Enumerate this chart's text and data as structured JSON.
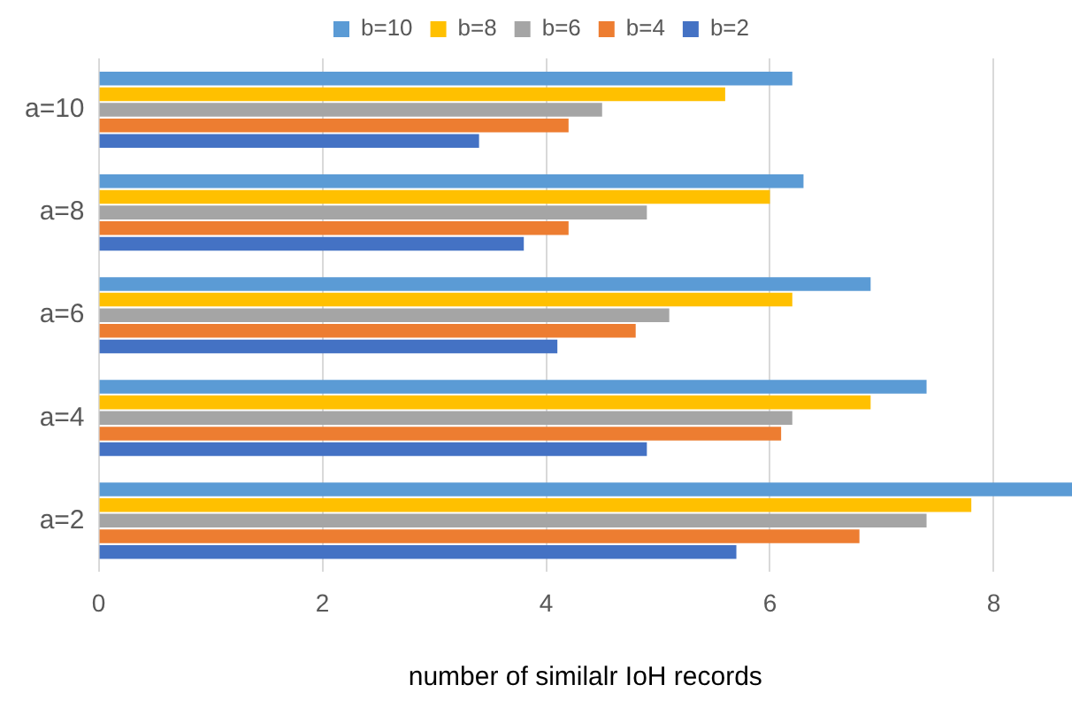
{
  "chart_data": {
    "type": "bar",
    "orientation": "horizontal",
    "xlabel": "number of similalr IoH records",
    "categories": [
      "a=10",
      "a=8",
      "a=6",
      "a=4",
      "a=2"
    ],
    "series": [
      {
        "name": "b=10",
        "color": "#5b9bd5",
        "values": [
          6.2,
          6.3,
          6.9,
          7.4,
          8.7
        ]
      },
      {
        "name": "b=8",
        "color": "#ffc000",
        "values": [
          5.6,
          6.0,
          6.2,
          6.9,
          7.8
        ]
      },
      {
        "name": "b=6",
        "color": "#a5a5a5",
        "values": [
          4.5,
          4.9,
          5.1,
          6.2,
          7.4
        ]
      },
      {
        "name": "b=4",
        "color": "#ed7d31",
        "values": [
          4.2,
          4.2,
          4.8,
          6.1,
          6.8
        ]
      },
      {
        "name": "b=2",
        "color": "#4472c4",
        "values": [
          3.4,
          3.8,
          4.1,
          4.9,
          5.7
        ]
      }
    ],
    "xlim": [
      0,
      8.7
    ],
    "xticks": [
      0,
      2,
      4,
      6,
      8
    ],
    "grid": "x",
    "legend": "top"
  }
}
